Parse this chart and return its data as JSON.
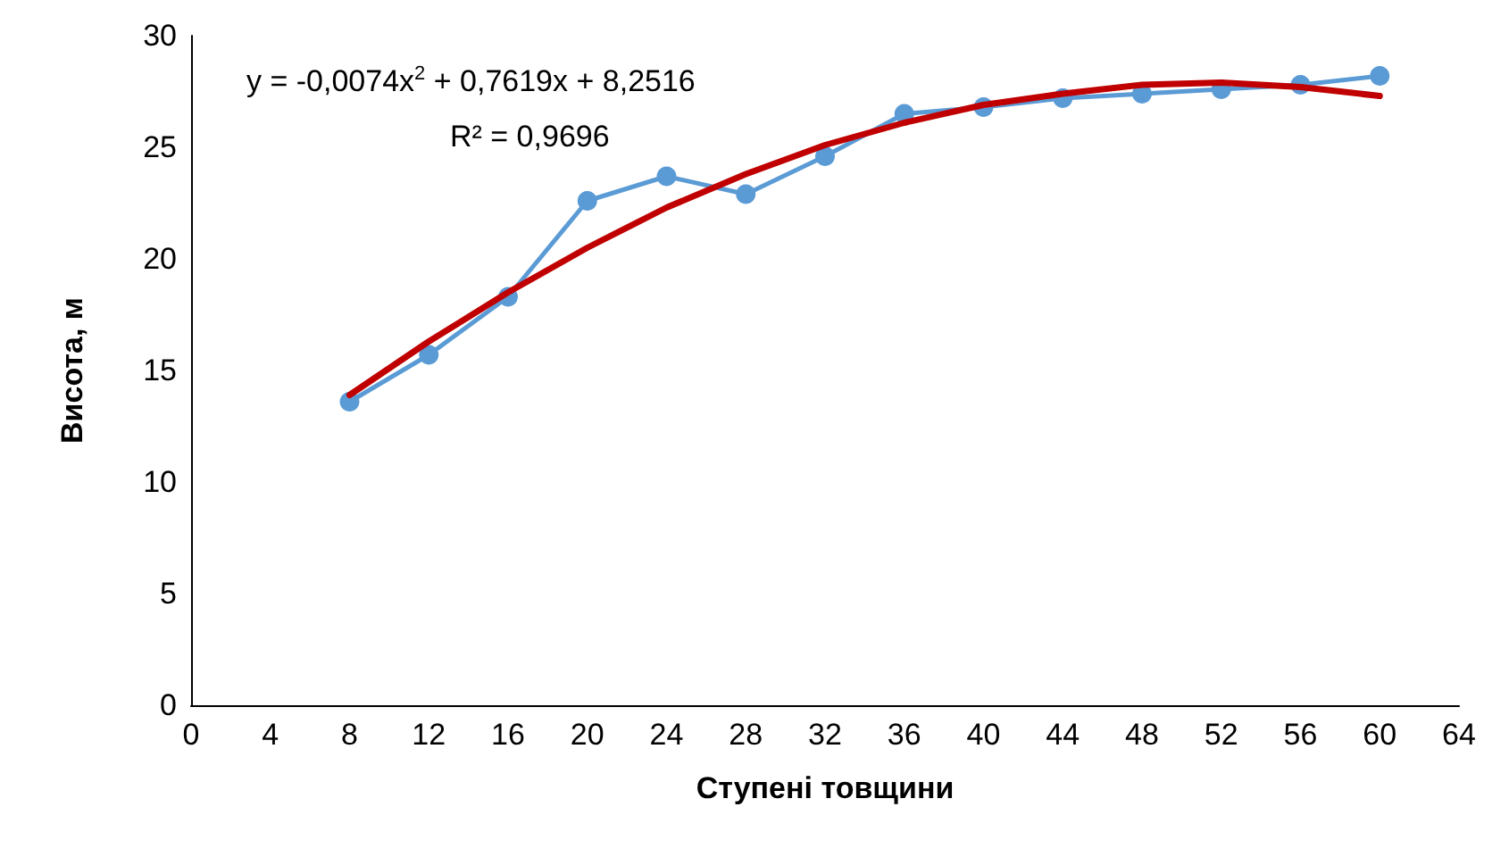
{
  "chart_data": {
    "type": "line",
    "xlabel": "Ступені товщини",
    "ylabel": "Висота, м",
    "xlim": [
      0,
      64
    ],
    "xticks": [
      0,
      4,
      8,
      12,
      16,
      20,
      24,
      28,
      32,
      36,
      40,
      44,
      48,
      52,
      56,
      60,
      64
    ],
    "ylim": [
      0,
      30
    ],
    "yticks": [
      0,
      5,
      10,
      15,
      20,
      25,
      30
    ],
    "x": [
      8,
      12,
      16,
      20,
      24,
      28,
      32,
      36,
      40,
      44,
      48,
      52,
      56,
      60
    ],
    "series": [
      {
        "color": "#5b9bd5",
        "marker": "circle",
        "values": [
          13.6,
          15.7,
          18.3,
          22.6,
          23.7,
          22.9,
          24.6,
          26.5,
          26.8,
          27.2,
          27.4,
          27.6,
          27.8,
          28.2
        ]
      },
      {
        "color": "#c00000",
        "marker": "none",
        "values": [
          13.9,
          16.3,
          18.5,
          20.5,
          22.3,
          23.8,
          25.1,
          26.1,
          26.9,
          27.4,
          27.8,
          27.9,
          27.7,
          27.3
        ]
      }
    ],
    "annotations": [
      "y = -0,0074x$^{2}$ + 0,7619x + 8,2516",
      "R² = 0,9696"
    ],
    "grid": false
  }
}
